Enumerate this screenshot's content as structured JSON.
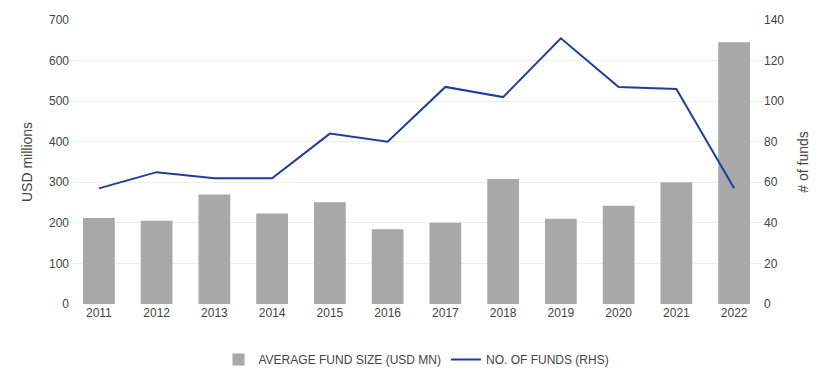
{
  "chart_data": {
    "type": "bar",
    "categories": [
      "2011",
      "2012",
      "2013",
      "2014",
      "2015",
      "2016",
      "2017",
      "2018",
      "2019",
      "2020",
      "2021",
      "2022"
    ],
    "series": [
      {
        "name": "AVERAGE FUND SIZE (USD MN)",
        "type": "bar",
        "color": "#a8a8a8",
        "values": [
          212,
          205,
          270,
          223,
          251,
          184,
          200,
          308,
          210,
          242,
          300,
          645
        ]
      },
      {
        "name": "NO. OF FUNDS (RHS)",
        "type": "line",
        "color": "#1f3d99",
        "axis": "y2",
        "values": [
          57,
          65,
          62,
          62,
          84,
          80,
          107,
          102,
          131,
          107,
          106,
          57
        ]
      }
    ],
    "ylabel": "USD millions",
    "y2label": "# of funds",
    "ylim": [
      0,
      700
    ],
    "yticks": [
      0,
      100,
      200,
      300,
      400,
      500,
      600,
      700
    ],
    "y2lim": [
      0,
      140
    ],
    "y2ticks": [
      0,
      20,
      40,
      60,
      80,
      100,
      120,
      140
    ],
    "grid": true,
    "legend": "bottom"
  }
}
